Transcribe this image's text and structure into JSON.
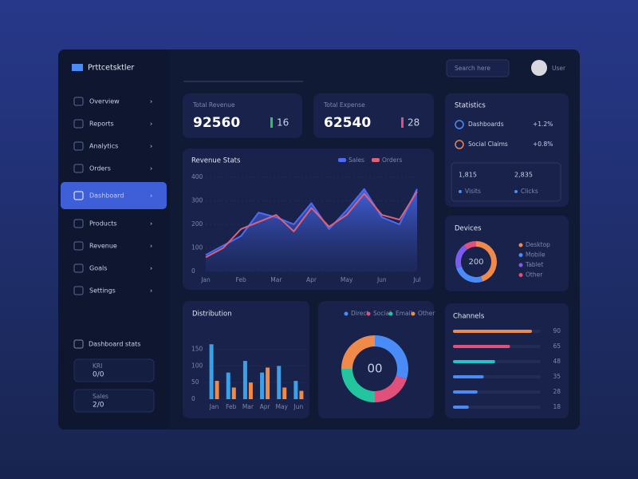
{
  "brand": "Prttcetsktler",
  "search": "Search here",
  "user": "User",
  "nav": {
    "items": [
      "Overview",
      "Reports",
      "Analytics",
      "Orders",
      "Dashboard",
      "Products",
      "Revenue",
      "Goals",
      "Settings"
    ],
    "active": 4
  },
  "sidebar_widget": {
    "title": "Dashboard stats",
    "items": [
      {
        "label": "KRI",
        "value": "0/0"
      },
      {
        "label": "Sales",
        "value": "2/0"
      }
    ]
  },
  "stats": [
    {
      "label": "Total Revenue",
      "value": "92560",
      "change": "16",
      "color": "#22c55e"
    },
    {
      "label": "Total Expense",
      "value": "62540",
      "change": "28",
      "color": "#e0507a"
    }
  ],
  "line_chart": {
    "type": "line",
    "title": "Revenue Stats",
    "categories": [
      "Jan",
      null,
      "Feb",
      null,
      "Mar",
      null,
      "Apr",
      null,
      "May",
      null,
      "Jun",
      null,
      "Jul"
    ],
    "series": [
      {
        "name": "Sales",
        "color": "#4a6cf7",
        "values": [
          70,
          110,
          150,
          250,
          230,
          200,
          290,
          180,
          260,
          350,
          230,
          200,
          350
        ]
      },
      {
        "name": "Orders",
        "color": "#e0607a",
        "values": [
          60,
          100,
          180,
          210,
          240,
          170,
          270,
          190,
          240,
          330,
          240,
          220,
          340
        ]
      }
    ],
    "ylim": [
      0,
      400
    ],
    "yticks": [
      0,
      100,
      200,
      300,
      400
    ]
  },
  "statistics": {
    "title": "Statistics",
    "rows": [
      {
        "label": "Dashboards",
        "value": "+1.2%",
        "color": "#4a8cf7"
      },
      {
        "label": "Social Claims",
        "value": "+0.8%",
        "color": "#e8835a"
      }
    ],
    "cells": [
      {
        "value": "1,815",
        "label": "Visits"
      },
      {
        "value": "2,835",
        "label": "Clicks"
      }
    ]
  },
  "donut_devices": {
    "type": "pie",
    "title": "Devices",
    "center": "200",
    "categories": [
      "Desktop",
      "Mobile",
      "Tablet",
      "Other"
    ],
    "values": [
      45,
      25,
      20,
      10
    ],
    "colors": [
      "#f08a4b",
      "#4a8cf7",
      "#7c5cf0",
      "#e0507a"
    ]
  },
  "bar_chart": {
    "type": "bar",
    "title": "Distribution",
    "categories": [
      "Jan",
      "Feb",
      "Mar",
      "Apr",
      "May",
      "Jun"
    ],
    "series": [
      {
        "name": "Sales",
        "color": "#3aa0e8",
        "values": [
          165,
          80,
          115,
          80,
          100,
          55
        ]
      },
      {
        "name": "Orders",
        "color": "#f08a4b",
        "values": [
          55,
          35,
          50,
          95,
          35,
          25
        ]
      }
    ],
    "ylim": [
      0,
      180
    ],
    "yticks": [
      0,
      50,
      100,
      150
    ]
  },
  "donut_share": {
    "type": "pie",
    "center": "00",
    "categories": [
      "Direct",
      "Social",
      "Email",
      "Other"
    ],
    "values": [
      30,
      20,
      25,
      25
    ],
    "colors": [
      "#4a8cf7",
      "#e0507a",
      "#22c59e",
      "#f08a4b"
    ]
  },
  "channels": {
    "type": "hbar",
    "title": "Channels",
    "values": [
      90,
      65,
      48,
      35,
      28,
      18
    ],
    "colors": [
      "#f08a4b",
      "#e0507a",
      "#22c5c5",
      "#4a8cf7",
      "#4a8cf7",
      "#4a8cf7"
    ],
    "xlim": [
      0,
      100
    ]
  }
}
